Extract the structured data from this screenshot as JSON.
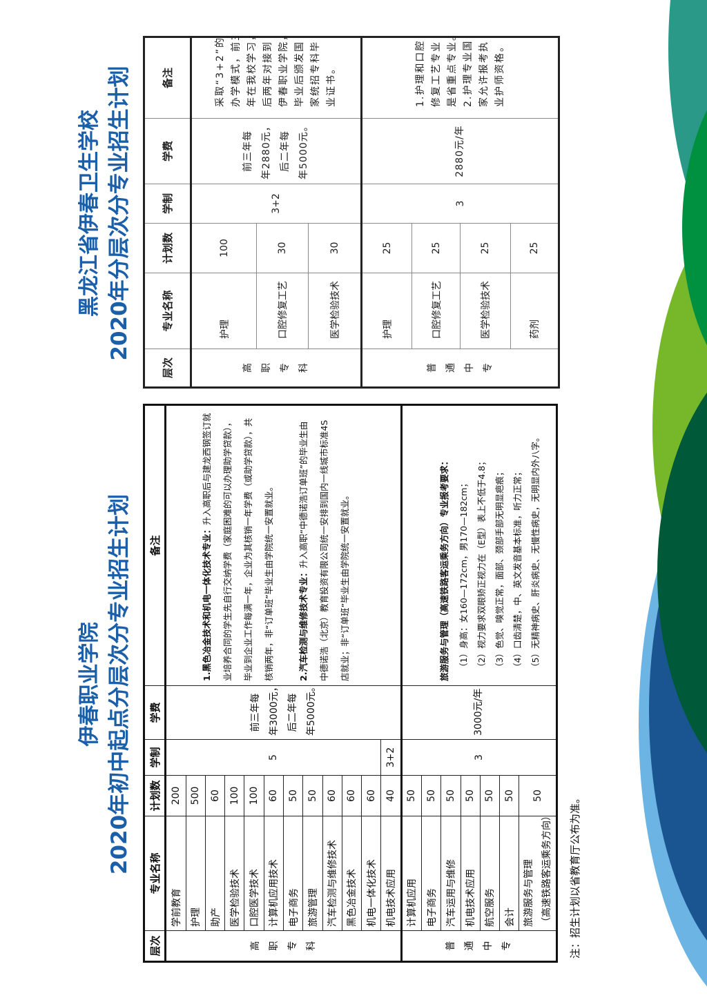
{
  "colors": {
    "title": "#1b5fa8",
    "teal": "#2a9988",
    "green": "#009140",
    "lime": "#76b82a",
    "dark_green": "#005a3a",
    "blue": "#1a5592",
    "light_blue": "#6cb4e4"
  },
  "left": {
    "title_line1": "伊春职业学院",
    "title_line2": "2020年初中起点分层次分专业招生计划",
    "headers": [
      "层次",
      "专业名称",
      "计划数",
      "学制",
      "学费",
      "备注"
    ],
    "sections": [
      {
        "level": "高职专科",
        "rows": [
          {
            "name": "学前教育",
            "plan": "200",
            "duration": "5"
          },
          {
            "name": "护理",
            "plan": "500",
            "duration": "5"
          },
          {
            "name": "助产",
            "plan": "60",
            "duration": "5"
          },
          {
            "name": "医学检验技术",
            "plan": "100",
            "duration": "5"
          },
          {
            "name": "口腔医学技术",
            "plan": "100",
            "duration": "5"
          },
          {
            "name": "计算机应用技术",
            "plan": "60",
            "duration": "5"
          },
          {
            "name": "电子商务",
            "plan": "50",
            "duration": "5"
          },
          {
            "name": "旅游管理",
            "plan": "50",
            "duration": "5"
          },
          {
            "name": "汽车检测与维修技术",
            "plan": "60",
            "duration": "5"
          },
          {
            "name": "黑色冶金技术",
            "plan": "60",
            "duration": "5"
          },
          {
            "name": "机电一体化技术",
            "plan": "60",
            "duration": "5"
          },
          {
            "name": "机电技术应用",
            "plan": "40",
            "duration": "3+2"
          }
        ],
        "fee_lines": [
          "前三年每",
          "年3000元，",
          "后二年每",
          "年5000元。"
        ],
        "remarks": [
          {
            "bold": "1.黑色冶金技术和机电一体化技术专业：",
            "text": "升入高职后与建龙西钢签订就"
          },
          {
            "bold": "",
            "text": "业培养合同的学生先自行交纳学费（家庭困难的可以办理助学贷款），"
          },
          {
            "bold": "",
            "text": "毕业到企业工作每满一年，企业为其核销一年学费（或助学贷款），共"
          },
          {
            "bold": "",
            "text": "核销两年，非“订单班”毕业生由学院统一安置就业。"
          },
          {
            "bold": "2.汽车检测与维修技术专业：",
            "text": "升入高职“中德诺浩订单班”的毕业生由",
            "gap": true
          },
          {
            "bold": "",
            "text": "中德诺浩（北京）教育投资有限公司统一安排到国内一线城市标准4S"
          },
          {
            "bold": "",
            "text": "店就业；非“订单班”毕业生由学院统一安置就业。"
          }
        ]
      },
      {
        "level": "普通中专",
        "rows": [
          {
            "name": "计算机应用",
            "plan": "50",
            "duration": "3"
          },
          {
            "name": "电子商务",
            "plan": "50",
            "duration": "3"
          },
          {
            "name": "汽车运用与维修",
            "plan": "50",
            "duration": "3"
          },
          {
            "name": "机电技术应用",
            "plan": "50",
            "duration": "3"
          },
          {
            "name": "航空服务",
            "plan": "50",
            "duration": "3"
          },
          {
            "name": "会计",
            "plan": "50",
            "duration": "3"
          },
          {
            "name": "旅游服务与管理",
            "name2": "（高速铁路客运乘务方向）",
            "plan": "50",
            "duration": "3"
          }
        ],
        "fee_lines": [
          "3000元/年"
        ],
        "remarks": [
          {
            "bold": "旅游服务与管理（高速铁路客运乘务方向）专业报考要求：",
            "text": ""
          },
          {
            "bold": "",
            "text": "（1）身高：女160—172cm，男170—182cm；",
            "indent": true
          },
          {
            "bold": "",
            "text": "（2）视力要求双眼矫正视力在（E型）表上不低于4.8；",
            "indent": true
          },
          {
            "bold": "",
            "text": "（3）色觉、嗅觉正常，面部、颈部手部无明显疤痕；",
            "indent": true
          },
          {
            "bold": "",
            "text": "（4）口齿清楚，中、英文发音基本标准，听力正常；",
            "indent": true
          },
          {
            "bold": "",
            "text": "（5）无精神病史、肝炎病史、无慢性病史，无明显内外八字。",
            "indent": true
          }
        ]
      }
    ],
    "note": "注：招生计划以省教育厅公布为准。"
  },
  "right": {
    "title_line1": "黑龙江省伊春卫生学校",
    "title_line2": "2020年分层次分专业招生计划",
    "headers": [
      "层次",
      "专业名称",
      "计划数",
      "学制",
      "学费",
      "备注"
    ],
    "sections": [
      {
        "level": "高职专科",
        "rows": [
          {
            "name": "护理",
            "plan": "100",
            "duration": "3+2"
          },
          {
            "name": "口腔修复工艺",
            "plan": "30",
            "duration": "3+2"
          },
          {
            "name": "医学检验技术",
            "plan": "30",
            "duration": "3+2"
          }
        ],
        "fee_lines": [
          "前三年每",
          "年2880元，",
          "后二年每",
          "年5000元。"
        ],
        "remarks": [
          {
            "bold": "",
            "text": "采取“3+2”的"
          },
          {
            "bold": "",
            "text": "办学模式，前三"
          },
          {
            "bold": "",
            "text": "年在我校学习，"
          },
          {
            "bold": "",
            "text": "后两年对接到"
          },
          {
            "bold": "",
            "text": "伊春职业学院，"
          },
          {
            "bold": "",
            "text": "毕业后颁发国"
          },
          {
            "bold": "",
            "text": "家统招专科毕"
          },
          {
            "bold": "",
            "text": "业证书。"
          }
        ]
      },
      {
        "level": "普通中专",
        "rows": [
          {
            "name": "护理",
            "plan": "25",
            "duration": "3"
          },
          {
            "name": "口腔修复工艺",
            "plan": "25",
            "duration": "3"
          },
          {
            "name": "医学检验技术",
            "plan": "25",
            "duration": "3"
          },
          {
            "name": "药剂",
            "plan": "25",
            "duration": "3"
          }
        ],
        "fee_lines": [
          "2880元/年"
        ],
        "remarks": [
          {
            "bold": "",
            "text": "1.护理和口腔"
          },
          {
            "bold": "",
            "text": "修复工艺专业"
          },
          {
            "bold": "",
            "text": "是省重点专业。"
          },
          {
            "bold": "",
            "text": "2.护理专业国"
          },
          {
            "bold": "",
            "text": "家允许报考执"
          },
          {
            "bold": "",
            "text": "业护师资格。"
          }
        ]
      }
    ]
  }
}
